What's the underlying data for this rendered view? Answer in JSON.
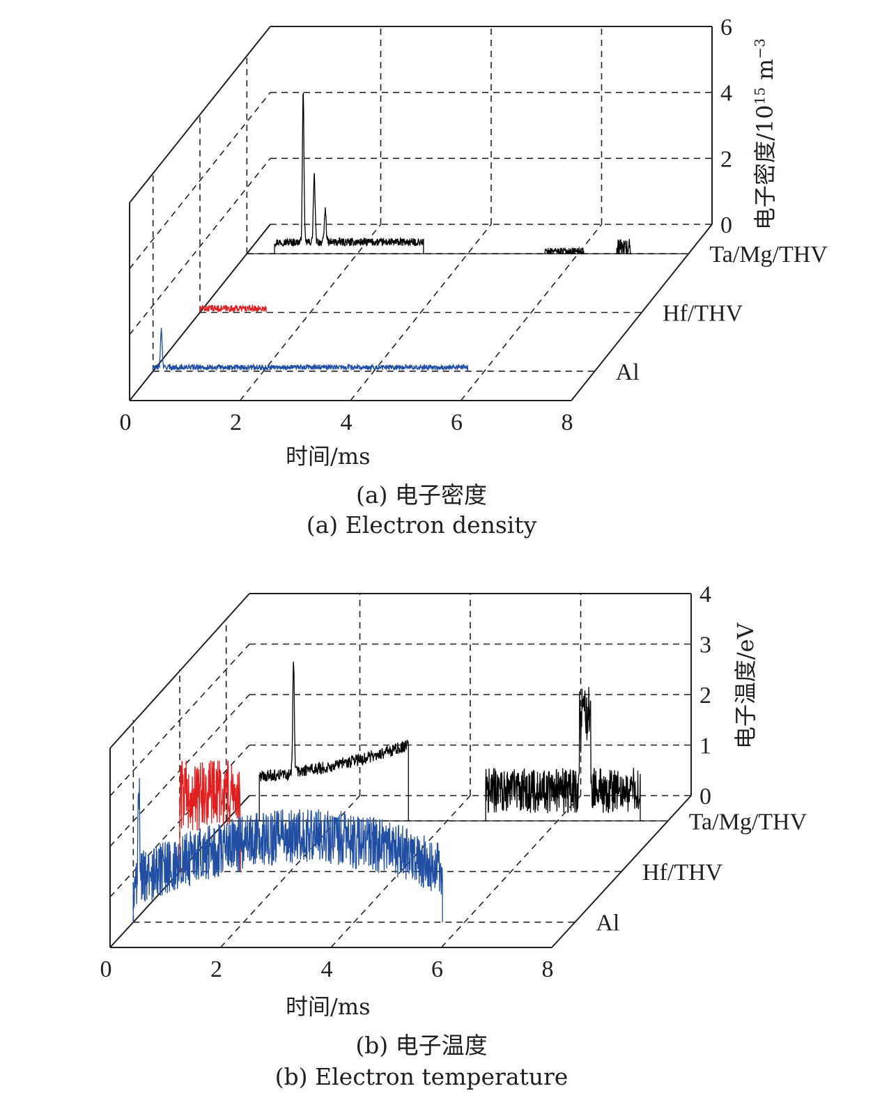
{
  "chart_data": [
    {
      "panel": "a",
      "type": "line",
      "style": "3d-waterfall",
      "xlabel": "时间/ms",
      "ylabel": "电子密度/10",
      "ylabel_sup": "15",
      "ylabel_unit": " m",
      "ylabel_unit_sup": "−3",
      "xlim": [
        0,
        8
      ],
      "ylim": [
        0,
        6
      ],
      "xticks": [
        "0",
        "2",
        "4",
        "6",
        "8"
      ],
      "yticks": [
        "0",
        "2",
        "4",
        "6"
      ],
      "grid": true,
      "caption_cn": "(a) 电子密度",
      "caption_en": "(a) Electron density",
      "series": [
        {
          "name": "Ta/Mg/THV",
          "color": "#000000",
          "mode": "burst",
          "segments": [
            {
              "start": 0.5,
              "end": 3.2,
              "base": 0.35,
              "peak": 4.9,
              "peak_t": 0.52,
              "noise": 0.12,
              "sub_peaks": [
                [
                  0.72,
                  2.0
                ],
                [
                  0.92,
                  1.0
                ]
              ]
            },
            {
              "start": 5.4,
              "end": 6.1,
              "base": 0.08,
              "noise": 0.1
            },
            {
              "start": 6.7,
              "end": 6.95,
              "base": 0.2,
              "noise": 0.25
            }
          ]
        },
        {
          "name": "Hf/THV",
          "color": "#e02020",
          "mode": "burst",
          "segments": [
            {
              "start": 0.0,
              "end": 1.2,
              "base": 0.12,
              "noise": 0.1
            }
          ]
        },
        {
          "name": "Al",
          "color": "#1f4ea3",
          "mode": "burst",
          "segments": [
            {
              "start": 0.0,
              "end": 5.7,
              "base": 0.12,
              "peak": 1.3,
              "peak_t": 0.15,
              "noise": 0.08
            }
          ]
        }
      ]
    },
    {
      "panel": "b",
      "type": "line",
      "style": "3d-waterfall",
      "xlabel": "时间/ms",
      "ylabel": "电子温度/eV",
      "xlim": [
        0,
        8
      ],
      "ylim": [
        0,
        4
      ],
      "xticks": [
        "0",
        "2",
        "4",
        "6",
        "8"
      ],
      "yticks": [
        "0",
        "1",
        "2",
        "3",
        "4"
      ],
      "grid": true,
      "caption_cn": "(b) 电子温度",
      "caption_en": "(b) Electron temperature",
      "series": [
        {
          "name": "Ta/Mg/THV",
          "color": "#000000",
          "mode": "burst",
          "segments": [
            {
              "start": 0.6,
              "end": 3.3,
              "base": 0.9,
              "peak": 3.2,
              "peak_t": 0.62,
              "noise": 0.12,
              "trend_end": 1.5
            },
            {
              "start": 4.7,
              "end": 7.5,
              "base": 0.6,
              "noise": 0.45,
              "burst": [
                [
                  6.4,
                  6.6,
                  2.5
                ]
              ]
            }
          ]
        },
        {
          "name": "Hf/THV",
          "color": "#e02020",
          "mode": "burst",
          "segments": [
            {
              "start": 0.0,
              "end": 1.1,
              "base": 1.5,
              "noise": 0.7
            }
          ]
        },
        {
          "name": "Al",
          "color": "#1f4ea3",
          "mode": "burst",
          "segments": [
            {
              "start": 0.0,
              "end": 5.6,
              "base": 0.8,
              "peak": 2.9,
              "peak_t": 0.1,
              "noise": 0.55,
              "trend_mid": 1.7
            }
          ]
        }
      ]
    }
  ]
}
